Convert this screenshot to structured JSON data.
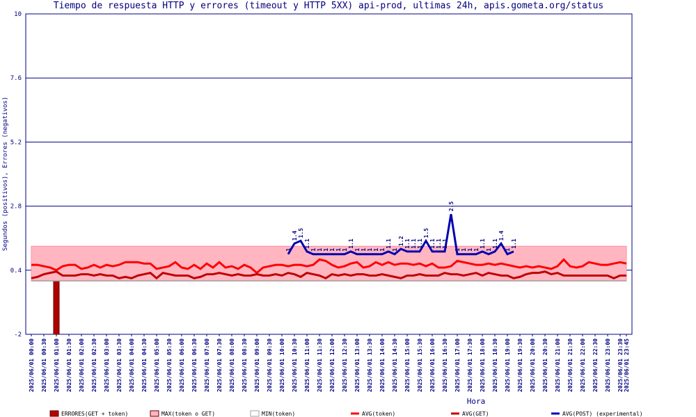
{
  "chart_data": {
    "type": "line",
    "title": "Tiempo de respuesta HTTP y errores (timeout y HTTP 5XX) api-prod, ultimas 24h, apis.gometa.org/status",
    "y_label": "Segundos (positivos), Errores (negativos)",
    "x_label": "Hora",
    "ylim": [
      -2,
      10
    ],
    "yticks": [
      -2,
      0.4,
      2.8,
      5.2,
      7.6,
      10
    ],
    "grid": true,
    "categories": [
      "2025/06/01 00:00",
      null,
      "2025/06/01 00:30",
      null,
      "2025/06/01 01:00",
      null,
      "2025/06/01 01:30",
      null,
      "2025/06/01 02:00",
      null,
      "2025/06/01 02:30",
      null,
      "2025/06/01 03:00",
      null,
      "2025/06/01 03:30",
      null,
      "2025/06/01 04:00",
      null,
      "2025/06/01 04:30",
      null,
      "2025/06/01 05:00",
      null,
      "2025/06/01 05:30",
      null,
      "2025/06/01 06:00",
      null,
      "2025/06/01 06:30",
      null,
      "2025/06/01 07:00",
      null,
      "2025/06/01 07:30",
      null,
      "2025/06/01 08:00",
      null,
      "2025/06/01 08:30",
      null,
      "2025/06/01 09:00",
      null,
      "2025/06/01 09:30",
      null,
      "2025/06/01 10:00",
      null,
      "2025/06/01 10:30",
      null,
      "2025/06/01 11:00",
      null,
      "2025/06/01 11:30",
      null,
      "2025/06/01 12:00",
      null,
      "2025/06/01 12:30",
      null,
      "2025/06/01 13:00",
      null,
      "2025/06/01 13:30",
      null,
      "2025/06/01 14:00",
      null,
      "2025/06/01 14:30",
      null,
      "2025/06/01 15:00",
      null,
      "2025/06/01 15:30",
      null,
      "2025/06/01 16:00",
      null,
      "2025/06/01 16:30",
      null,
      "2025/06/01 17:00",
      null,
      "2025/06/01 17:30",
      null,
      "2025/06/01 18:00",
      null,
      "2025/06/01 18:30",
      null,
      "2025/06/01 19:00",
      null,
      "2025/06/01 19:30",
      null,
      "2025/06/01 20:00",
      null,
      "2025/06/01 20:30",
      null,
      "2025/06/01 21:00",
      null,
      "2025/06/01 21:30",
      null,
      "2025/06/01 22:00",
      null,
      "2025/06/01 22:30",
      null,
      "2025/06/01 23:00",
      null,
      "2025/06/01 23:30",
      "2025/06/01 23:45"
    ],
    "series": [
      {
        "name": "ERRORES(GET + token)",
        "type": "bar",
        "color": "#b00000",
        "values": [
          null,
          null,
          null,
          null,
          -2,
          null,
          null,
          null,
          null,
          null,
          null,
          null,
          null,
          null,
          null,
          null,
          null,
          null,
          null,
          null,
          null,
          null,
          null,
          null,
          null,
          null,
          null,
          null,
          null,
          null,
          null,
          null,
          null,
          null,
          null,
          null,
          null,
          null,
          null,
          null,
          null,
          null,
          null,
          null,
          null,
          null,
          null,
          null,
          null,
          null,
          null,
          null,
          null,
          null,
          null,
          null,
          null,
          null,
          null,
          null,
          null,
          null,
          null,
          null,
          null,
          null,
          null,
          null,
          null,
          null,
          null,
          null,
          null,
          null,
          null,
          null,
          null,
          null,
          null,
          null,
          null,
          null,
          null,
          null,
          null,
          null,
          null,
          null,
          null,
          null,
          null,
          null,
          null,
          null,
          null,
          null
        ]
      },
      {
        "name": "MAX(token o GET)",
        "type": "area",
        "color": "#ffb6c1",
        "values": [
          1.3,
          1.3,
          1.3,
          1.3,
          1.3,
          1.3,
          1.3,
          1.3,
          1.3,
          1.3,
          1.3,
          1.3,
          1.3,
          1.3,
          1.3,
          1.3,
          1.3,
          1.3,
          1.3,
          1.3,
          1.3,
          1.3,
          1.3,
          1.3,
          1.3,
          1.3,
          1.3,
          1.3,
          1.3,
          1.3,
          1.3,
          1.3,
          1.3,
          1.3,
          1.3,
          1.3,
          1.3,
          1.3,
          1.3,
          1.3,
          1.3,
          1.3,
          1.3,
          1.3,
          1.3,
          1.3,
          1.3,
          1.3,
          1.3,
          1.3,
          1.3,
          1.3,
          1.3,
          1.3,
          1.3,
          1.3,
          1.3,
          1.3,
          1.3,
          1.3,
          1.3,
          1.3,
          1.3,
          1.3,
          1.3,
          1.3,
          1.3,
          1.3,
          1.3,
          1.3,
          1.3,
          1.3,
          1.3,
          1.3,
          1.3,
          1.3,
          1.3,
          1.3,
          1.3,
          1.3,
          1.3,
          1.3,
          1.3,
          1.3,
          1.3,
          1.3,
          1.3,
          1.3,
          1.3,
          1.3,
          1.3,
          1.3,
          1.3,
          1.3,
          1.3,
          1.3
        ]
      },
      {
        "name": "MIN(token)",
        "type": "line",
        "color": "#a0a0a0",
        "values": [
          0,
          0,
          0,
          0,
          0,
          0,
          0,
          0,
          0,
          0,
          0,
          0,
          0,
          0,
          0,
          0,
          0,
          0,
          0,
          0,
          0,
          0,
          0,
          0,
          0,
          0,
          0,
          0,
          0,
          0,
          0,
          0,
          0,
          0,
          0,
          0,
          0,
          0,
          0,
          0,
          0,
          0,
          0,
          0,
          0,
          0,
          0,
          0,
          0,
          0,
          0,
          0,
          0,
          0,
          0,
          0,
          0,
          0,
          0,
          0,
          0,
          0,
          0,
          0,
          0,
          0,
          0,
          0,
          0,
          0,
          0,
          0,
          0,
          0,
          0,
          0,
          0,
          0,
          0,
          0,
          0,
          0,
          0,
          0,
          0,
          0,
          0,
          0,
          0,
          0,
          0,
          0,
          0,
          0,
          0,
          0
        ]
      },
      {
        "name": "AVG(token)",
        "type": "line",
        "color": "#ff0000",
        "values": [
          0.6,
          0.6,
          0.55,
          0.5,
          0.4,
          0.55,
          0.6,
          0.6,
          0.45,
          0.5,
          0.6,
          0.5,
          0.6,
          0.55,
          0.6,
          0.7,
          0.7,
          0.7,
          0.65,
          0.65,
          0.45,
          0.5,
          0.55,
          0.7,
          0.5,
          0.45,
          0.6,
          0.45,
          0.65,
          0.5,
          0.7,
          0.5,
          0.55,
          0.45,
          0.6,
          0.5,
          0.3,
          0.5,
          0.55,
          0.6,
          0.6,
          0.55,
          0.6,
          0.6,
          0.55,
          0.6,
          0.8,
          0.75,
          0.6,
          0.5,
          0.55,
          0.65,
          0.7,
          0.5,
          0.55,
          0.7,
          0.6,
          0.7,
          0.6,
          0.65,
          0.65,
          0.6,
          0.65,
          0.55,
          0.65,
          0.5,
          0.5,
          0.55,
          0.75,
          0.7,
          0.65,
          0.6,
          0.6,
          0.65,
          0.6,
          0.65,
          0.6,
          0.55,
          0.5,
          0.55,
          0.5,
          0.55,
          0.5,
          0.45,
          0.55,
          0.8,
          0.55,
          0.5,
          0.55,
          0.7,
          0.65,
          0.6,
          0.6,
          0.65,
          0.7,
          0.65
        ]
      },
      {
        "name": "AVG(GET)",
        "type": "line",
        "color": "#c00000",
        "values": [
          0.1,
          0.15,
          0.25,
          0.3,
          0.35,
          0.2,
          0.2,
          0.2,
          0.25,
          0.25,
          0.2,
          0.25,
          0.2,
          0.2,
          0.1,
          0.15,
          0.1,
          0.2,
          0.25,
          0.3,
          0.1,
          0.3,
          0.25,
          0.2,
          0.2,
          0.2,
          0.1,
          0.15,
          0.25,
          0.25,
          0.3,
          0.25,
          0.2,
          0.25,
          0.2,
          0.2,
          0.25,
          0.2,
          0.2,
          0.25,
          0.2,
          0.3,
          0.25,
          0.15,
          0.3,
          0.25,
          0.2,
          0.1,
          0.25,
          0.2,
          0.25,
          0.2,
          0.25,
          0.25,
          0.2,
          0.2,
          0.25,
          0.2,
          0.15,
          0.1,
          0.2,
          0.2,
          0.25,
          0.2,
          0.2,
          0.2,
          0.3,
          0.25,
          0.25,
          0.2,
          0.25,
          0.3,
          0.2,
          0.3,
          0.25,
          0.2,
          0.2,
          0.1,
          0.15,
          0.25,
          0.3,
          0.3,
          0.35,
          0.25,
          0.3,
          0.2,
          0.2,
          0.2,
          0.2,
          0.2,
          0.2,
          0.2,
          0.2,
          0.1,
          0.2,
          0.2
        ]
      },
      {
        "name": "AVG(POST) (experimental)",
        "type": "line",
        "color": "#0000b0",
        "labels": true,
        "values": [
          null,
          null,
          null,
          null,
          null,
          null,
          null,
          null,
          null,
          null,
          null,
          null,
          null,
          null,
          null,
          null,
          null,
          null,
          null,
          null,
          null,
          null,
          null,
          null,
          null,
          null,
          null,
          null,
          null,
          null,
          null,
          null,
          null,
          null,
          null,
          null,
          null,
          null,
          null,
          null,
          null,
          1.0,
          1.4,
          1.5,
          1.1,
          1.0,
          1.0,
          1.0,
          1.0,
          1.0,
          1.0,
          1.1,
          1.0,
          1.0,
          1.0,
          1.0,
          1.0,
          1.1,
          1.0,
          1.2,
          1.1,
          1.1,
          1.1,
          1.5,
          1.1,
          1.1,
          1.1,
          2.5,
          1.0,
          1.0,
          1.0,
          1.0,
          1.1,
          1.0,
          1.1,
          1.4,
          1.0,
          1.1,
          null,
          null,
          null,
          null,
          null,
          null,
          null,
          null,
          null,
          null,
          null,
          null,
          null,
          null,
          null,
          null,
          null,
          null
        ]
      }
    ]
  }
}
